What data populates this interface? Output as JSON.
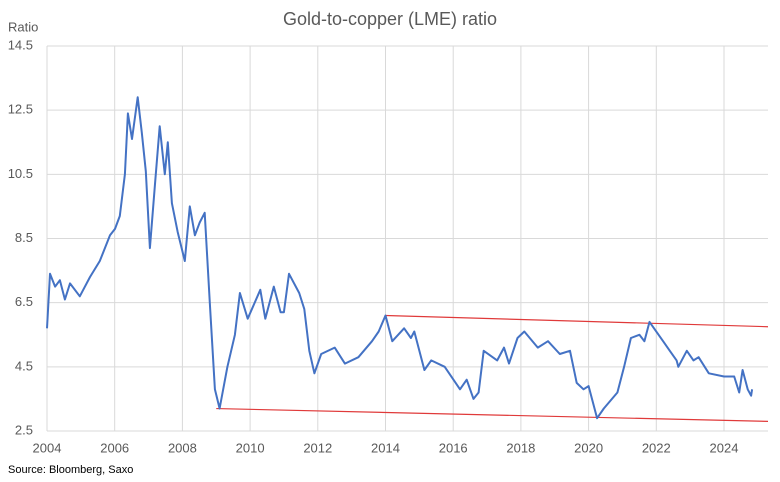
{
  "chart_data": {
    "type": "line",
    "title": "Gold-to-copper (LME) ratio",
    "y_label": "Ratio",
    "source": "Source: Bloomberg, Saxo",
    "xlim": [
      2004,
      2025.3
    ],
    "xticks": [
      2004,
      2006,
      2008,
      2010,
      2012,
      2014,
      2016,
      2018,
      2020,
      2022,
      2024
    ],
    "ylim": [
      2.5,
      14.5
    ],
    "yticks": [
      2.5,
      4.5,
      6.5,
      8.5,
      10.5,
      12.5,
      14.5
    ],
    "grid": true,
    "x": [
      2004.0,
      2004.09,
      2004.24,
      2004.38,
      2004.53,
      2004.68,
      2004.97,
      2005.27,
      2005.56,
      2005.86,
      2006.01,
      2006.15,
      2006.3,
      2006.39,
      2006.51,
      2006.68,
      2006.8,
      2006.92,
      2007.04,
      2007.19,
      2007.33,
      2007.48,
      2007.57,
      2007.69,
      2007.86,
      2008.07,
      2008.22,
      2008.37,
      2008.51,
      2008.66,
      2008.81,
      2008.96,
      2009.1,
      2009.33,
      2009.55,
      2009.7,
      2009.93,
      2010.3,
      2010.45,
      2010.7,
      2010.9,
      2011.0,
      2011.15,
      2011.45,
      2011.6,
      2011.75,
      2011.9,
      2012.1,
      2012.5,
      2012.8,
      2013.2,
      2013.6,
      2013.8,
      2014.0,
      2014.2,
      2014.55,
      2014.75,
      2014.85,
      2015.15,
      2015.35,
      2015.75,
      2016.2,
      2016.4,
      2016.6,
      2016.75,
      2016.9,
      2017.3,
      2017.5,
      2017.65,
      2017.9,
      2018.1,
      2018.5,
      2018.8,
      2019.15,
      2019.45,
      2019.65,
      2019.85,
      2020.0,
      2020.25,
      2020.45,
      2020.85,
      2021.05,
      2021.25,
      2021.5,
      2021.65,
      2021.8,
      2022.2,
      2022.4,
      2022.6,
      2022.65,
      2022.9,
      2023.1,
      2023.25,
      2023.55,
      2024.0,
      2024.3,
      2024.45,
      2024.55,
      2024.7,
      2024.8,
      2024.83
    ],
    "series": [
      {
        "color": "#4472c4",
        "values": [
          5.7,
          7.4,
          7.0,
          7.2,
          6.6,
          7.1,
          6.7,
          7.3,
          7.8,
          8.6,
          8.8,
          9.2,
          10.5,
          12.4,
          11.6,
          12.9,
          11.8,
          10.6,
          8.2,
          10.2,
          12.0,
          10.5,
          11.5,
          9.6,
          8.7,
          7.8,
          9.5,
          8.6,
          9.0,
          9.3,
          6.5,
          3.8,
          3.2,
          4.5,
          5.5,
          6.8,
          6.0,
          6.9,
          6.0,
          7.0,
          6.2,
          6.2,
          7.4,
          6.8,
          6.3,
          5.0,
          4.3,
          4.9,
          5.1,
          4.6,
          4.8,
          5.3,
          5.6,
          6.1,
          5.3,
          5.7,
          5.4,
          5.6,
          4.4,
          4.7,
          4.5,
          3.8,
          4.1,
          3.5,
          3.7,
          5.0,
          4.7,
          5.1,
          4.6,
          5.4,
          5.6,
          5.1,
          5.3,
          4.9,
          5.0,
          4.0,
          3.8,
          3.9,
          2.9,
          3.2,
          3.7,
          4.5,
          5.4,
          5.5,
          5.3,
          5.9,
          5.3,
          5.0,
          4.7,
          4.5,
          5.0,
          4.7,
          4.8,
          4.3,
          4.2,
          4.2,
          3.7,
          4.4,
          3.8,
          3.6,
          3.8
        ]
      }
    ],
    "trend_lines": [
      {
        "color": "#e03a3a",
        "x": [
          2009.0,
          2025.3
        ],
        "y": [
          3.2,
          2.8
        ]
      },
      {
        "color": "#e03a3a",
        "x": [
          2014.0,
          2025.3
        ],
        "y": [
          6.1,
          5.75
        ]
      }
    ]
  }
}
